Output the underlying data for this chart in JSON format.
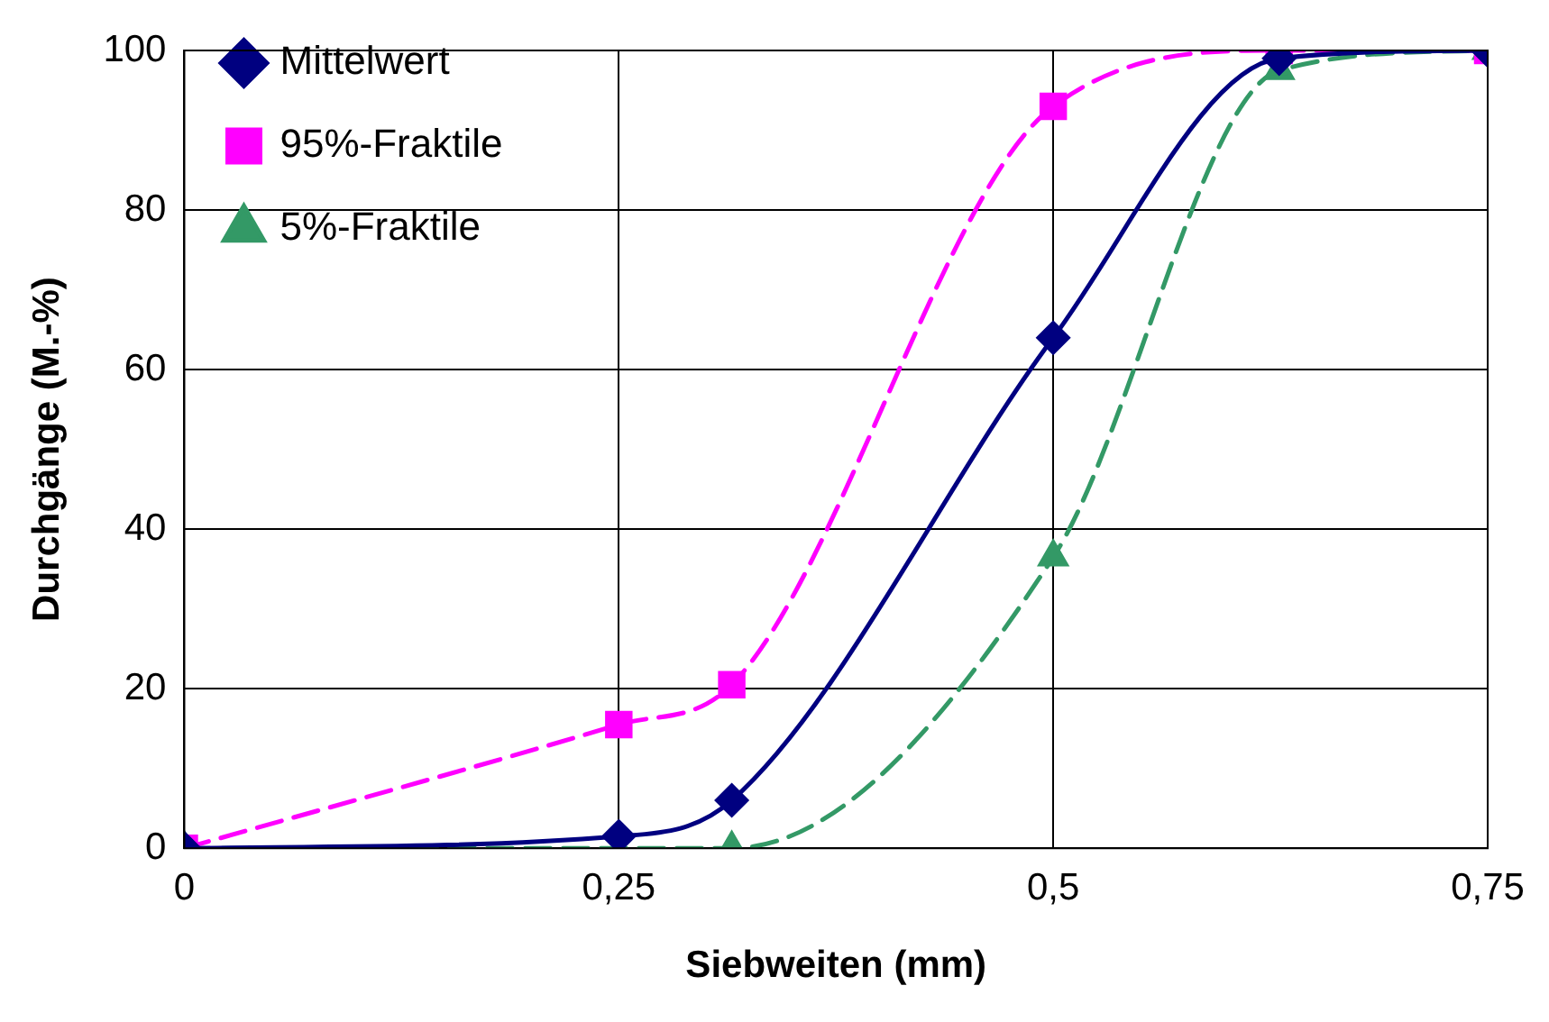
{
  "chart_data": {
    "type": "line",
    "xlabel": "Siebweiten (mm)",
    "ylabel": "Durchgänge (M.-%)",
    "xlim": [
      0,
      0.75
    ],
    "xticks": [
      0,
      {
        "value": 0.25,
        "label": "0,25"
      },
      {
        "value": 0.5,
        "label": "0,5"
      },
      {
        "value": 0.75,
        "label": "0,75"
      }
    ],
    "ylim": [
      0,
      100
    ],
    "yticks": [
      0,
      20,
      40,
      60,
      80,
      100
    ],
    "grid": true,
    "legend": "top left",
    "series": [
      {
        "name": "Mittelwert",
        "color": "#000080",
        "marker": "diamond",
        "line_style": "solid",
        "x": [
          0,
          0.25,
          0.315,
          0.5,
          0.63,
          0.75
        ],
        "values": [
          0,
          1.5,
          6,
          64,
          99,
          100
        ]
      },
      {
        "name": "95%-Fraktile",
        "color": "#ff00ff",
        "marker": "square",
        "line_style": "dashed",
        "x": [
          0,
          0.25,
          0.315,
          0.5,
          0.63,
          0.75
        ],
        "values": [
          0,
          15.5,
          20.5,
          93,
          100,
          100
        ]
      },
      {
        "name": "5%-Fraktile",
        "color": "#339966",
        "marker": "triangle",
        "line_style": "dashed",
        "x": [
          0,
          0.315,
          0.5,
          0.63,
          0.75
        ],
        "values": [
          0,
          0,
          36.5,
          97.5,
          100
        ]
      }
    ]
  }
}
